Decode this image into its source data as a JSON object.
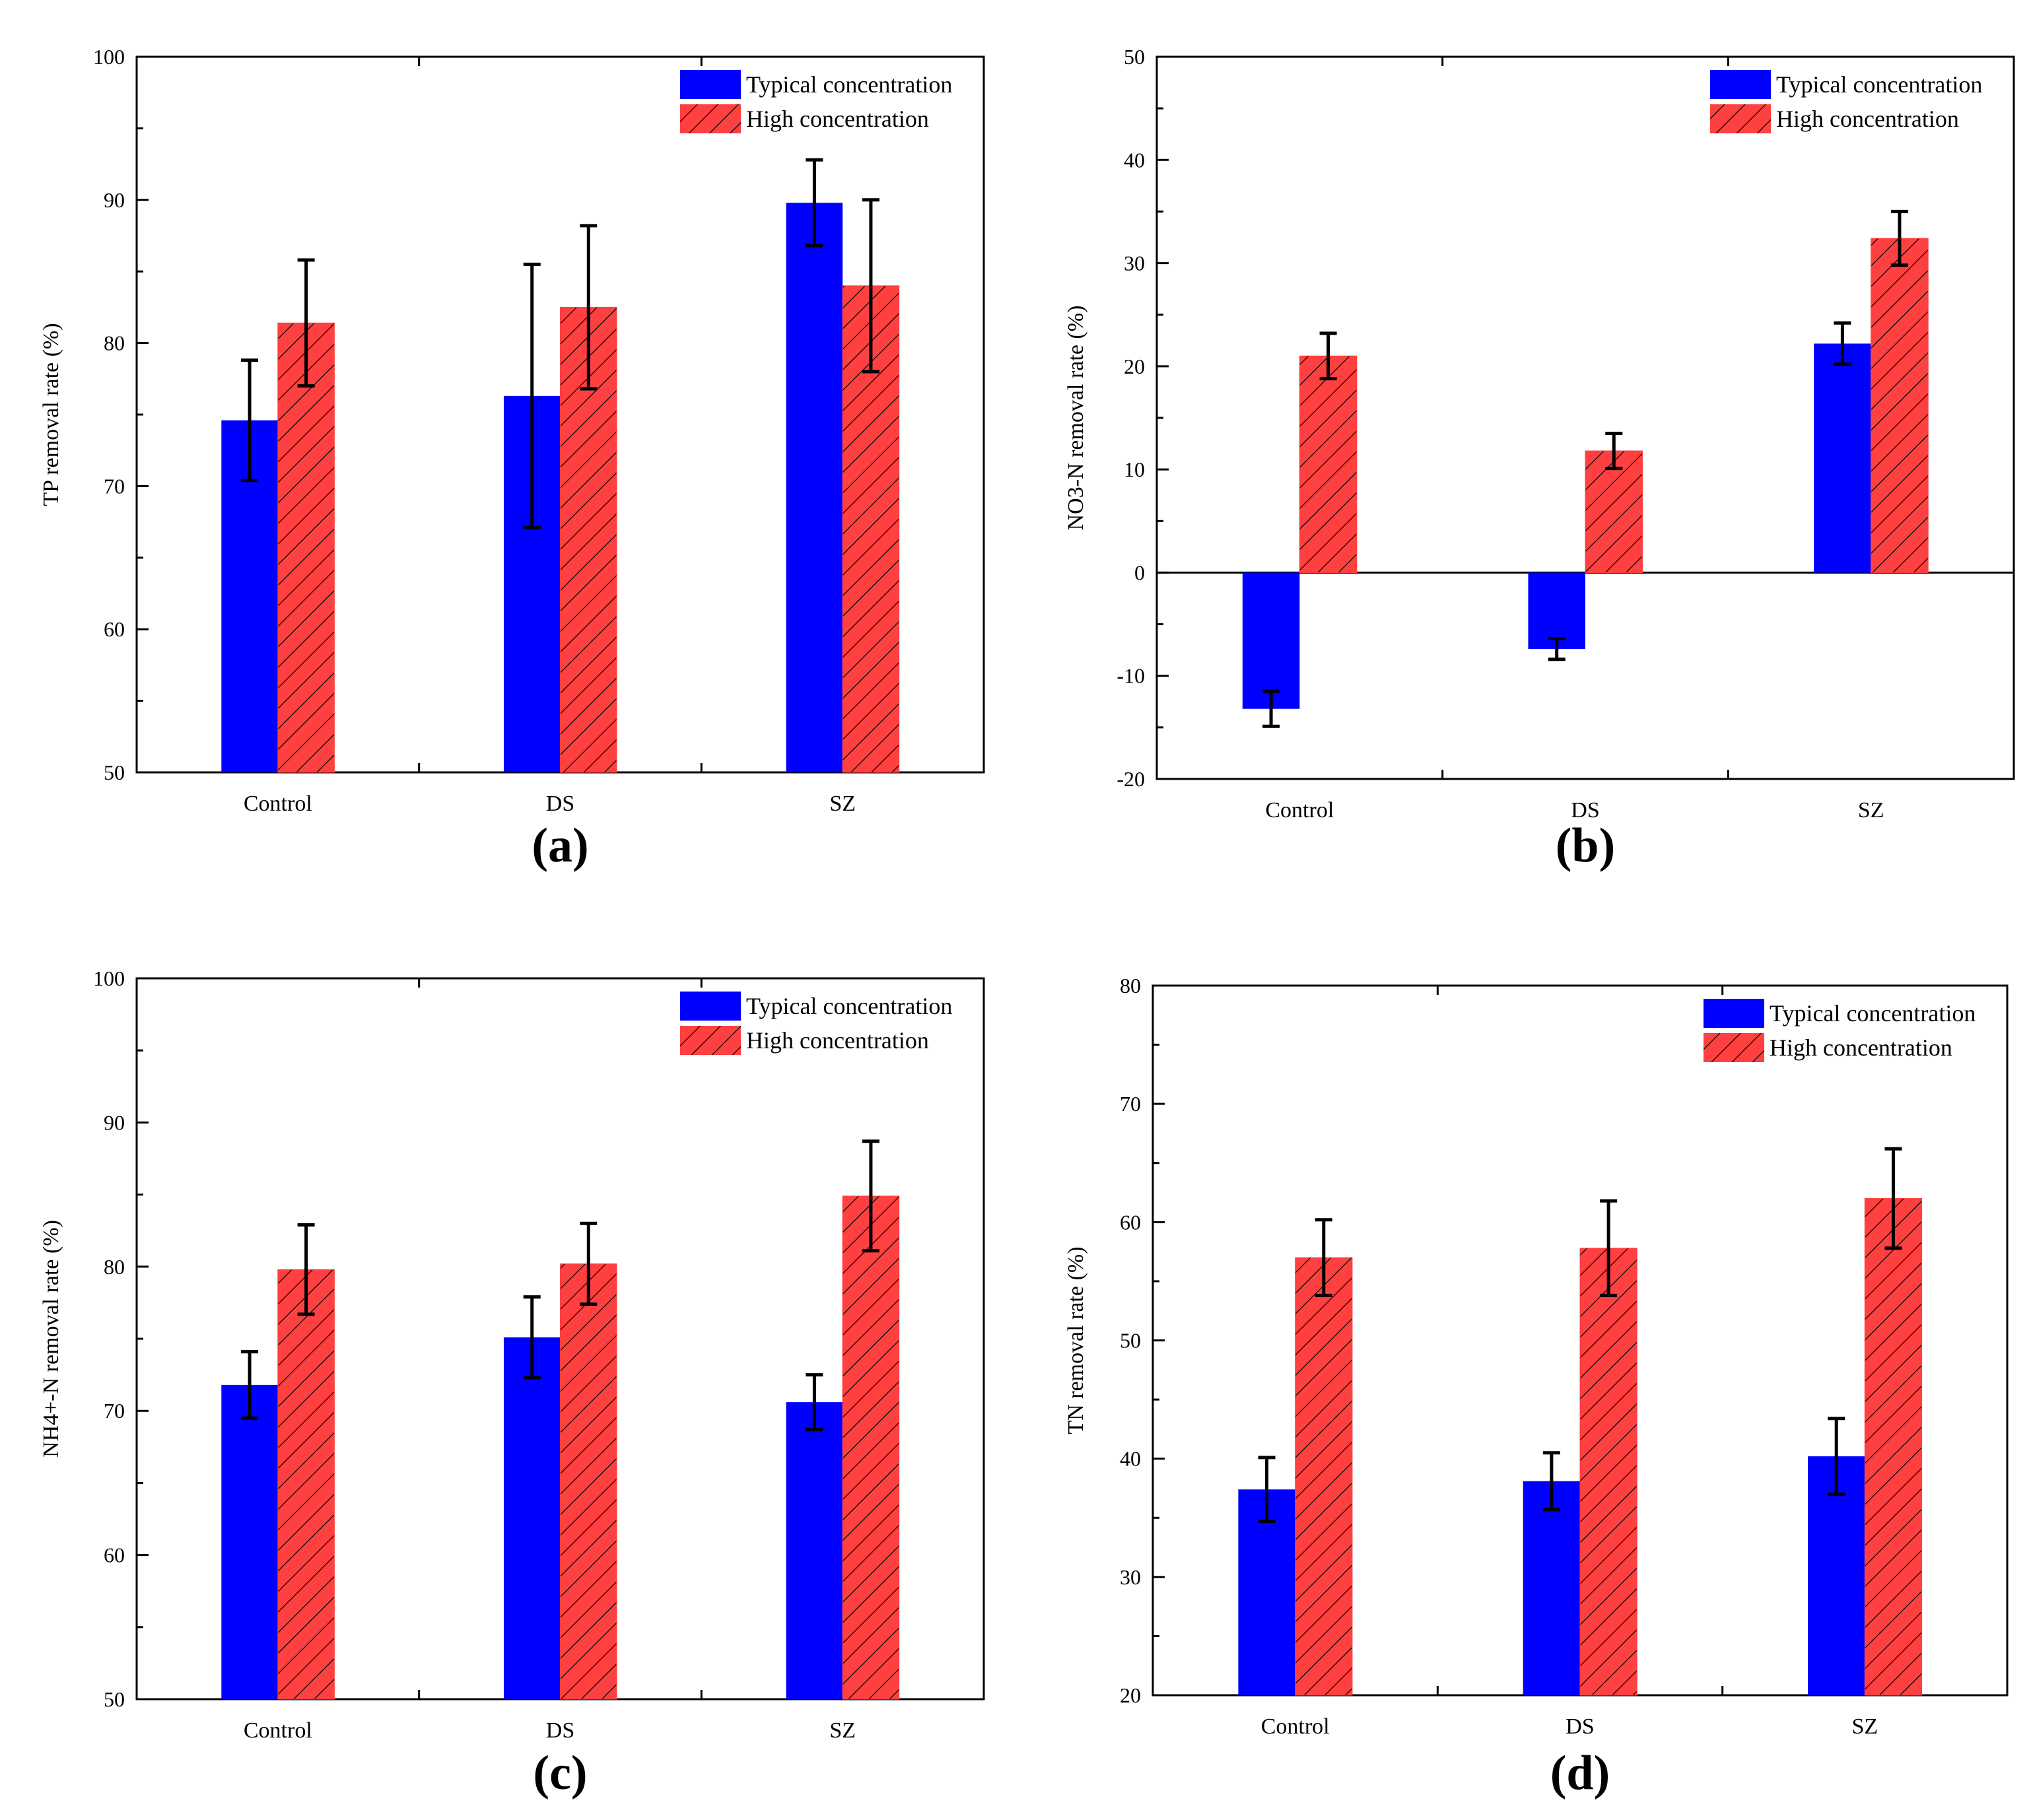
{
  "colors": {
    "typical": "#0000ff",
    "high": "#ff4040",
    "hatch": "#000000",
    "axis": "#000000"
  },
  "legend_labels": {
    "typical": "Typical concentration",
    "high": "High concentration"
  },
  "chart_data": [
    {
      "id": "a",
      "panel_label": "(a)",
      "type": "bar",
      "ylabel": "TP removal rate (%)",
      "ylim": [
        50,
        100
      ],
      "yticks": [
        50,
        60,
        70,
        80,
        90,
        100
      ],
      "ytick_labels": [
        "50",
        "60",
        "70",
        "80",
        "90",
        "100"
      ],
      "categories": [
        "Control",
        "DS",
        "SZ"
      ],
      "legend_position": "top-right",
      "series": [
        {
          "name": "Typical concentration",
          "key": "typical",
          "values": [
            74.6,
            76.3,
            89.8
          ],
          "errors": [
            4.2,
            9.2,
            3.0
          ]
        },
        {
          "name": "High concentration",
          "key": "high",
          "values": [
            81.4,
            82.5,
            84.0
          ],
          "errors": [
            4.4,
            5.7,
            6.0
          ]
        }
      ]
    },
    {
      "id": "b",
      "panel_label": "(b)",
      "type": "bar",
      "ylabel": "NO3-N removal rate (%)",
      "ylim": [
        -20,
        50
      ],
      "yticks": [
        -20,
        -10,
        0,
        10,
        20,
        30,
        40,
        50
      ],
      "ytick_labels": [
        "-20",
        "-10",
        "0",
        "10",
        "20",
        "30",
        "40",
        "50"
      ],
      "zero_line": true,
      "categories": [
        "Control",
        "DS",
        "SZ"
      ],
      "legend_position": "top-right",
      "series": [
        {
          "name": "Typical concentration",
          "key": "typical",
          "values": [
            -13.2,
            -7.4,
            22.2
          ],
          "errors": [
            1.7,
            1.0,
            2.0
          ]
        },
        {
          "name": "High concentration",
          "key": "high",
          "values": [
            21.0,
            11.8,
            32.4
          ],
          "errors": [
            2.2,
            1.7,
            2.6
          ]
        }
      ]
    },
    {
      "id": "c",
      "panel_label": "(c)",
      "type": "bar",
      "ylabel": "NH4+-N removal rate (%)",
      "ylim": [
        50,
        100
      ],
      "yticks": [
        50,
        60,
        70,
        80,
        90,
        100
      ],
      "ytick_labels": [
        "50",
        "60",
        "70",
        "80",
        "90",
        "100"
      ],
      "categories": [
        "Control",
        "DS",
        "SZ"
      ],
      "legend_position": "top-right",
      "series": [
        {
          "name": "Typical concentration",
          "key": "typical",
          "values": [
            71.8,
            75.1,
            70.6
          ],
          "errors": [
            2.3,
            2.8,
            1.9
          ]
        },
        {
          "name": "High concentration",
          "key": "high",
          "values": [
            79.8,
            80.2,
            84.9
          ],
          "errors": [
            3.1,
            2.8,
            3.8
          ]
        }
      ]
    },
    {
      "id": "d",
      "panel_label": "(d)",
      "type": "bar",
      "ylabel": "TN removal rate (%)",
      "ylim": [
        20,
        80
      ],
      "yticks": [
        20,
        30,
        40,
        50,
        60,
        70,
        80
      ],
      "ytick_labels": [
        "20",
        "30",
        "40",
        "50",
        "60",
        "70",
        "80"
      ],
      "categories": [
        "Control",
        "DS",
        "SZ"
      ],
      "legend_position": "top-right",
      "series": [
        {
          "name": "Typical concentration",
          "key": "typical",
          "values": [
            37.4,
            38.1,
            40.2
          ],
          "errors": [
            2.7,
            2.4,
            3.2
          ]
        },
        {
          "name": "High concentration",
          "key": "high",
          "values": [
            57.0,
            57.8,
            62.0
          ],
          "errors": [
            3.2,
            4.0,
            4.2
          ]
        }
      ]
    }
  ]
}
